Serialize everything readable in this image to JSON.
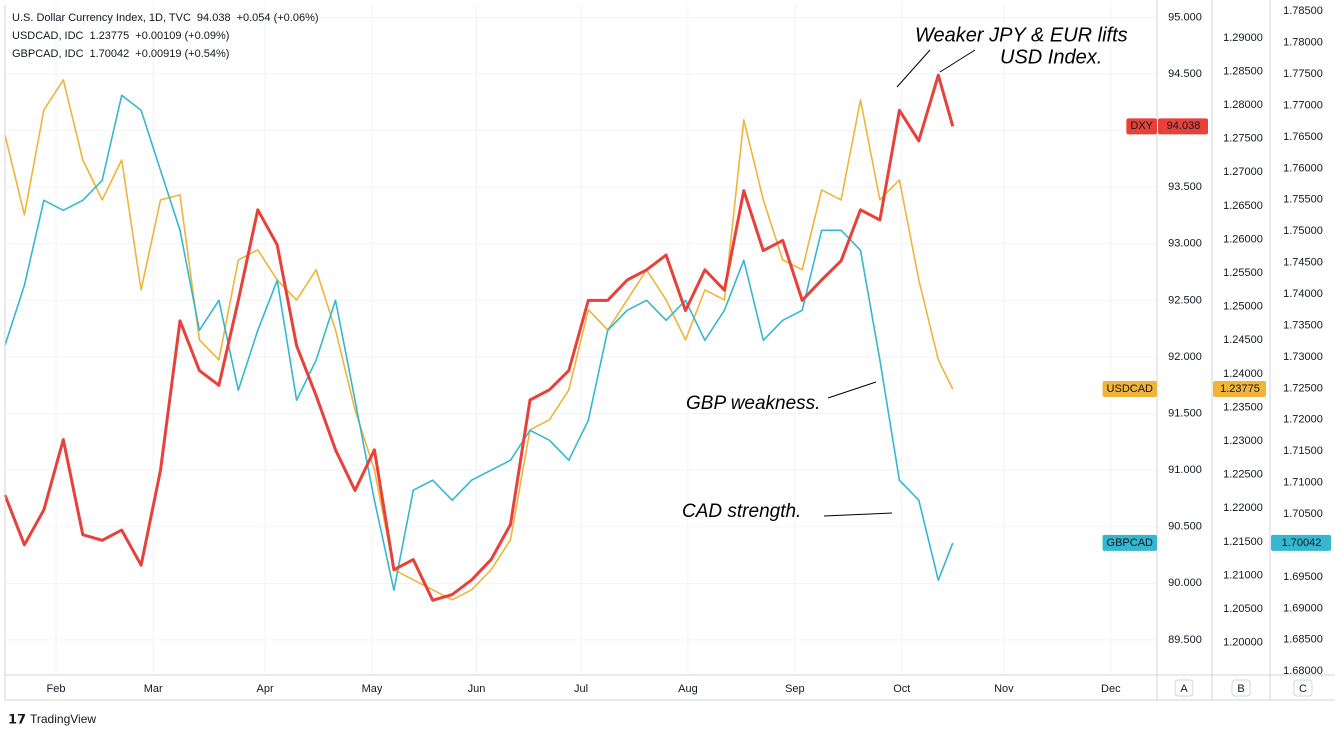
{
  "chart_data": {
    "type": "line",
    "x": [
      0,
      4,
      8,
      12,
      16,
      20,
      24,
      28,
      32,
      36,
      40,
      44,
      48,
      52,
      56,
      60,
      64,
      68,
      72,
      76,
      80,
      84,
      88,
      92,
      96,
      100,
      104,
      108,
      112,
      116,
      120,
      124,
      128,
      132,
      136,
      140,
      144,
      148,
      152,
      156,
      160,
      164,
      168,
      172,
      176,
      180,
      184,
      188,
      192,
      195
    ],
    "xlim": [
      0,
      237
    ],
    "xticks": [
      {
        "value": 10.5,
        "label": "Feb"
      },
      {
        "value": 30.5,
        "label": "Mar"
      },
      {
        "value": 53.5,
        "label": "Apr"
      },
      {
        "value": 75.5,
        "label": "May"
      },
      {
        "value": 97,
        "label": "Jun"
      },
      {
        "value": 118.5,
        "label": "Jul"
      },
      {
        "value": 140.5,
        "label": "Aug"
      },
      {
        "value": 162.5,
        "label": "Sep"
      },
      {
        "value": 184.5,
        "label": "Oct"
      },
      {
        "value": 205.5,
        "label": "Nov"
      },
      {
        "value": 227.5,
        "label": "Dec"
      }
    ],
    "ylim": [
      89.19,
      95.11
    ],
    "yticks": [
      {
        "value": 89.5,
        "label": "89.500"
      },
      {
        "value": 90,
        "label": "90.000"
      },
      {
        "value": 90.5,
        "label": "90.500"
      },
      {
        "value": 91,
        "label": "91.000"
      },
      {
        "value": 91.5,
        "label": "91.500"
      },
      {
        "value": 92,
        "label": "92.000"
      },
      {
        "value": 92.5,
        "label": "92.500"
      },
      {
        "value": 93,
        "label": "93.000"
      },
      {
        "value": 93.5,
        "label": "93.500"
      },
      {
        "value": 94,
        "label": "94.000"
      },
      {
        "value": 94.5,
        "label": "94.500"
      },
      {
        "value": 95,
        "label": "95.000"
      }
    ],
    "y2lim": [
      1.1952,
      1.2949
    ],
    "y2ticks": [
      {
        "value": 1.2,
        "label": "1.20000"
      },
      {
        "value": 1.205,
        "label": "1.20500"
      },
      {
        "value": 1.21,
        "label": "1.21000"
      },
      {
        "value": 1.215,
        "label": "1.21500"
      },
      {
        "value": 1.22,
        "label": "1.22000"
      },
      {
        "value": 1.225,
        "label": "1.22500"
      },
      {
        "value": 1.23,
        "label": "1.23000"
      },
      {
        "value": 1.235,
        "label": "1.23500"
      },
      {
        "value": 1.24,
        "label": "1.24000"
      },
      {
        "value": 1.245,
        "label": "1.24500"
      },
      {
        "value": 1.25,
        "label": "1.25000"
      },
      {
        "value": 1.255,
        "label": "1.25500"
      },
      {
        "value": 1.26,
        "label": "1.26000"
      },
      {
        "value": 1.265,
        "label": "1.26500"
      },
      {
        "value": 1.27,
        "label": "1.27000"
      },
      {
        "value": 1.275,
        "label": "1.27500"
      },
      {
        "value": 1.28,
        "label": "1.28000"
      },
      {
        "value": 1.285,
        "label": "1.28500"
      },
      {
        "value": 1.29,
        "label": "1.29000"
      }
    ],
    "y3lim": [
      1.6794,
      1.786
    ],
    "y3ticks": [
      {
        "value": 1.68,
        "label": "1.68000"
      },
      {
        "value": 1.685,
        "label": "1.68500"
      },
      {
        "value": 1.69,
        "label": "1.69000"
      },
      {
        "value": 1.695,
        "label": "1.69500"
      },
      {
        "value": 1.7,
        "label": "1.70000"
      },
      {
        "value": 1.705,
        "label": "1.70500"
      },
      {
        "value": 1.71,
        "label": "1.71000"
      },
      {
        "value": 1.715,
        "label": "1.71500"
      },
      {
        "value": 1.72,
        "label": "1.72000"
      },
      {
        "value": 1.725,
        "label": "1.72500"
      },
      {
        "value": 1.73,
        "label": "1.73000"
      },
      {
        "value": 1.735,
        "label": "1.73500"
      },
      {
        "value": 1.74,
        "label": "1.74000"
      },
      {
        "value": 1.745,
        "label": "1.74500"
      },
      {
        "value": 1.75,
        "label": "1.75000"
      },
      {
        "value": 1.755,
        "label": "1.75500"
      },
      {
        "value": 1.76,
        "label": "1.76000"
      },
      {
        "value": 1.765,
        "label": "1.76500"
      },
      {
        "value": 1.77,
        "label": "1.77000"
      },
      {
        "value": 1.775,
        "label": "1.77500"
      },
      {
        "value": 1.78,
        "label": "1.78000"
      },
      {
        "value": 1.785,
        "label": "1.78500"
      }
    ],
    "axis_names": [
      "A",
      "B",
      "C"
    ],
    "grid": true,
    "series": [
      {
        "name": "U.S. Dollar Currency Index, 1D, TVC",
        "tag": "DXY",
        "change": "+0.054 (+0.06%)",
        "color": "#e8413a",
        "axis": "y",
        "values": [
          90.78,
          90.34,
          90.65,
          91.27,
          90.43,
          90.38,
          90.47,
          90.16,
          91.0,
          92.32,
          91.88,
          91.75,
          92.5,
          93.3,
          92.99,
          92.1,
          91.66,
          91.18,
          90.82,
          91.18,
          90.12,
          90.21,
          89.85,
          89.9,
          90.03,
          90.21,
          90.52,
          91.62,
          91.71,
          91.88,
          92.5,
          92.5,
          92.68,
          92.77,
          92.9,
          92.41,
          92.77,
          92.59,
          93.47,
          92.94,
          93.03,
          92.5,
          92.68,
          92.85,
          93.3,
          93.21,
          94.18,
          93.91,
          94.49,
          94.038
        ]
      },
      {
        "name": "USDCAD, IDC",
        "tag": "USDCAD",
        "change": "+0.00109 (+0.09%)",
        "color": "#f0b43a",
        "axis": "y2",
        "values": [
          1.27557,
          1.26367,
          1.27929,
          1.28375,
          1.27185,
          1.2659,
          1.27185,
          1.25251,
          1.2659,
          1.26664,
          1.24507,
          1.2421,
          1.25697,
          1.25846,
          1.254,
          1.25102,
          1.25549,
          1.24656,
          1.23466,
          1.22573,
          1.21086,
          1.20937,
          1.20788,
          1.20639,
          1.20788,
          1.21086,
          1.21532,
          1.23168,
          1.23317,
          1.23763,
          1.24954,
          1.24656,
          1.25102,
          1.25549,
          1.25102,
          1.24507,
          1.25251,
          1.25102,
          1.2778,
          1.2659,
          1.25697,
          1.25549,
          1.26739,
          1.2659,
          1.28078,
          1.2659,
          1.26887,
          1.254,
          1.2421,
          1.23775
        ]
      },
      {
        "name": "GBPCAD, IDC",
        "tag": "GBPCAD",
        "change": "+0.00919 (+0.54%)",
        "color": "#35b8cf",
        "axis": "y3",
        "values": [
          1.73187,
          1.74141,
          1.75493,
          1.75334,
          1.75493,
          1.75811,
          1.77164,
          1.76925,
          1.7597,
          1.75016,
          1.73425,
          1.73902,
          1.72471,
          1.73425,
          1.7422,
          1.72312,
          1.72948,
          1.73902,
          1.72312,
          1.70721,
          1.69289,
          1.7088,
          1.71039,
          1.70721,
          1.71039,
          1.71198,
          1.71357,
          1.71834,
          1.71675,
          1.71357,
          1.71993,
          1.73425,
          1.73743,
          1.73902,
          1.73584,
          1.73902,
          1.73266,
          1.73743,
          1.74539,
          1.73266,
          1.73584,
          1.73743,
          1.75016,
          1.75016,
          1.74698,
          1.72948,
          1.71039,
          1.70721,
          1.69448,
          1.70042
        ]
      }
    ],
    "annotations": [
      "Weaker JPY & EUR lifts",
      "USD Index.",
      "GBP weakness.",
      "CAD strength."
    ],
    "brand": "TradingView"
  }
}
